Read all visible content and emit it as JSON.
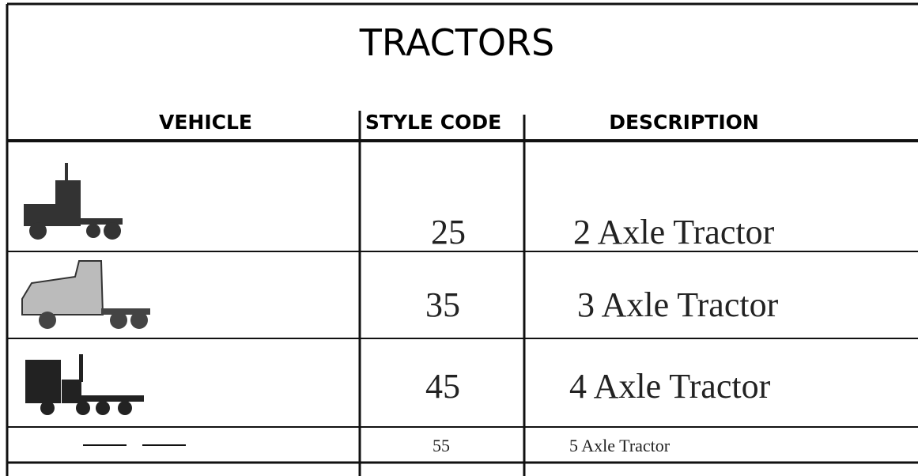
{
  "header": {
    "title": "TRACTORS"
  },
  "table": {
    "columns": [
      "VEHICLE",
      "STYLE CODE",
      "DESCRIPTION"
    ],
    "rows": [
      {
        "style_code": 25,
        "description": "2 Axle Tractor"
      },
      {
        "style_code": 35,
        "description": "3 Axle Tractor"
      },
      {
        "style_code": 45,
        "description": "4 Axle Tractor"
      },
      {
        "style_code": 55,
        "description": "5 Axle Tractor"
      }
    ]
  }
}
